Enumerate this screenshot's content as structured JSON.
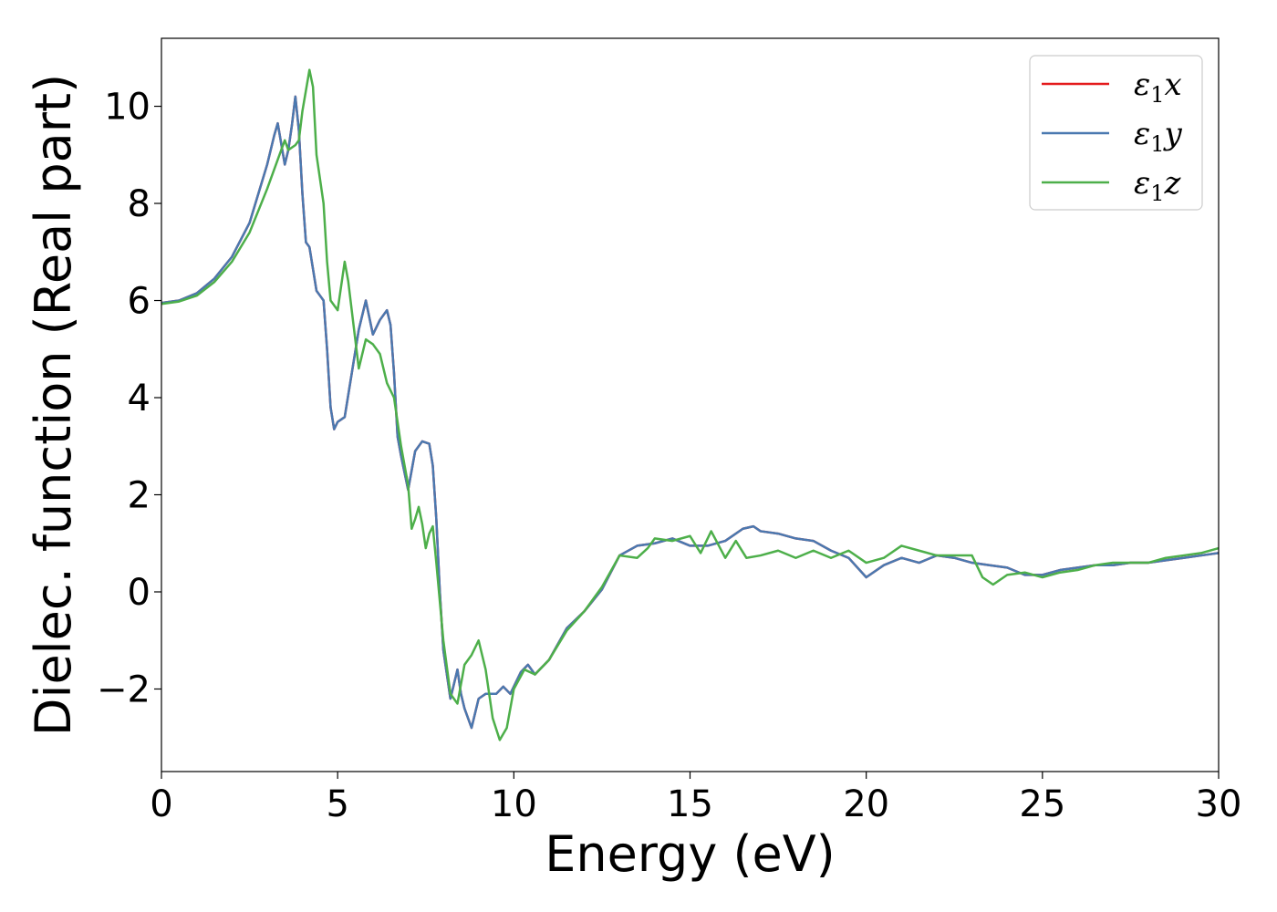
{
  "chart_data": {
    "type": "line",
    "title": "",
    "xlabel": "Energy (eV)",
    "ylabel": "Dielec. function (Real part)",
    "xlim": [
      0,
      30
    ],
    "ylim": [
      -3.7,
      11.4
    ],
    "xticks": [
      0,
      5,
      10,
      15,
      20,
      25,
      30
    ],
    "yticks": [
      -2,
      0,
      2,
      4,
      6,
      8,
      10
    ],
    "ytick_labels": [
      "−2",
      "0",
      "2",
      "4",
      "6",
      "8",
      "10"
    ],
    "grid": false,
    "legend_position": "top-right",
    "series": [
      {
        "name": "ε1x",
        "legend_base": "ε",
        "legend_sub": "1",
        "legend_var": "x",
        "color": "#e41a1c",
        "x": [
          0,
          0.5,
          1,
          1.5,
          2,
          2.5,
          3,
          3.2,
          3.3,
          3.5,
          3.6,
          3.7,
          3.8,
          3.9,
          4.0,
          4.1,
          4.2,
          4.4,
          4.5,
          4.6,
          4.7,
          4.8,
          4.9,
          5.0,
          5.2,
          5.4,
          5.6,
          5.8,
          6.0,
          6.2,
          6.4,
          6.5,
          6.6,
          6.7,
          6.8,
          7.0,
          7.2,
          7.4,
          7.6,
          7.7,
          7.8,
          7.9,
          8.0,
          8.2,
          8.4,
          8.5,
          8.6,
          8.8,
          9.0,
          9.2,
          9.5,
          9.7,
          9.9,
          10.2,
          10.4,
          10.6,
          11.0,
          11.5,
          12.0,
          12.5,
          13.0,
          13.5,
          14.0,
          14.5,
          15.0,
          15.5,
          16.0,
          16.5,
          16.8,
          17.0,
          17.5,
          18.0,
          18.5,
          19.0,
          19.5,
          20.0,
          20.5,
          21.0,
          21.5,
          22.0,
          22.5,
          23.0,
          23.5,
          24.0,
          24.5,
          25.0,
          25.5,
          26.0,
          26.5,
          27.0,
          27.5,
          28.0,
          28.5,
          29.0,
          29.5,
          30.0
        ],
        "y": [
          5.95,
          6.0,
          6.15,
          6.45,
          6.9,
          7.6,
          8.8,
          9.4,
          9.65,
          8.8,
          9.1,
          9.6,
          10.2,
          9.5,
          8.2,
          7.2,
          7.1,
          6.2,
          6.1,
          6.0,
          5.0,
          3.8,
          3.35,
          3.5,
          3.6,
          4.5,
          5.4,
          6.0,
          5.3,
          5.6,
          5.8,
          5.5,
          4.5,
          3.2,
          2.8,
          2.1,
          2.9,
          3.1,
          3.05,
          2.6,
          1.5,
          0.0,
          -1.2,
          -2.2,
          -1.6,
          -2.1,
          -2.4,
          -2.8,
          -2.2,
          -2.1,
          -2.1,
          -1.95,
          -2.1,
          -1.65,
          -1.5,
          -1.7,
          -1.4,
          -0.75,
          -0.4,
          0.05,
          0.75,
          0.95,
          1.0,
          1.1,
          0.95,
          0.95,
          1.05,
          1.3,
          1.35,
          1.25,
          1.2,
          1.1,
          1.05,
          0.85,
          0.7,
          0.3,
          0.55,
          0.7,
          0.6,
          0.75,
          0.7,
          0.6,
          0.55,
          0.5,
          0.35,
          0.35,
          0.45,
          0.5,
          0.55,
          0.55,
          0.6,
          0.6,
          0.65,
          0.7,
          0.75,
          0.8
        ]
      },
      {
        "name": "ε1y",
        "legend_base": "ε",
        "legend_sub": "1",
        "legend_var": "y",
        "color": "#4a79b0",
        "x": [
          0,
          0.5,
          1,
          1.5,
          2,
          2.5,
          3,
          3.2,
          3.3,
          3.5,
          3.6,
          3.7,
          3.8,
          3.9,
          4.0,
          4.1,
          4.2,
          4.4,
          4.5,
          4.6,
          4.7,
          4.8,
          4.9,
          5.0,
          5.2,
          5.4,
          5.6,
          5.8,
          6.0,
          6.2,
          6.4,
          6.5,
          6.6,
          6.7,
          6.8,
          7.0,
          7.2,
          7.4,
          7.6,
          7.7,
          7.8,
          7.9,
          8.0,
          8.2,
          8.4,
          8.5,
          8.6,
          8.8,
          9.0,
          9.2,
          9.5,
          9.7,
          9.9,
          10.2,
          10.4,
          10.6,
          11.0,
          11.5,
          12.0,
          12.5,
          13.0,
          13.5,
          14.0,
          14.5,
          15.0,
          15.5,
          16.0,
          16.5,
          16.8,
          17.0,
          17.5,
          18.0,
          18.5,
          19.0,
          19.5,
          20.0,
          20.5,
          21.0,
          21.5,
          22.0,
          22.5,
          23.0,
          23.5,
          24.0,
          24.5,
          25.0,
          25.5,
          26.0,
          26.5,
          27.0,
          27.5,
          28.0,
          28.5,
          29.0,
          29.5,
          30.0
        ],
        "y": [
          5.95,
          6.0,
          6.15,
          6.45,
          6.9,
          7.6,
          8.8,
          9.4,
          9.65,
          8.8,
          9.1,
          9.6,
          10.2,
          9.5,
          8.2,
          7.2,
          7.1,
          6.2,
          6.1,
          6.0,
          5.0,
          3.8,
          3.35,
          3.5,
          3.6,
          4.5,
          5.4,
          6.0,
          5.3,
          5.6,
          5.8,
          5.5,
          4.5,
          3.2,
          2.8,
          2.1,
          2.9,
          3.1,
          3.05,
          2.6,
          1.5,
          0.0,
          -1.2,
          -2.2,
          -1.6,
          -2.1,
          -2.4,
          -2.8,
          -2.2,
          -2.1,
          -2.1,
          -1.95,
          -2.1,
          -1.65,
          -1.5,
          -1.7,
          -1.4,
          -0.75,
          -0.4,
          0.05,
          0.75,
          0.95,
          1.0,
          1.1,
          0.95,
          0.95,
          1.05,
          1.3,
          1.35,
          1.25,
          1.2,
          1.1,
          1.05,
          0.85,
          0.7,
          0.3,
          0.55,
          0.7,
          0.6,
          0.75,
          0.7,
          0.6,
          0.55,
          0.5,
          0.35,
          0.35,
          0.45,
          0.5,
          0.55,
          0.55,
          0.6,
          0.6,
          0.65,
          0.7,
          0.75,
          0.8
        ]
      },
      {
        "name": "ε1z",
        "legend_base": "ε",
        "legend_sub": "1",
        "legend_var": "z",
        "color": "#4daf4a",
        "x": [
          0,
          0.5,
          1,
          1.5,
          2,
          2.5,
          3,
          3.3,
          3.5,
          3.6,
          3.8,
          3.9,
          4.0,
          4.2,
          4.3,
          4.4,
          4.6,
          4.7,
          4.8,
          5.0,
          5.2,
          5.3,
          5.5,
          5.6,
          5.8,
          6.0,
          6.2,
          6.4,
          6.6,
          6.8,
          7.0,
          7.1,
          7.2,
          7.3,
          7.4,
          7.5,
          7.6,
          7.7,
          7.8,
          8.0,
          8.2,
          8.4,
          8.6,
          8.8,
          9.0,
          9.2,
          9.4,
          9.6,
          9.8,
          10.0,
          10.3,
          10.6,
          11.0,
          11.5,
          12.0,
          12.5,
          13.0,
          13.5,
          13.8,
          14.0,
          14.5,
          15.0,
          15.3,
          15.6,
          16.0,
          16.3,
          16.6,
          17.0,
          17.5,
          18.0,
          18.5,
          19.0,
          19.5,
          20.0,
          20.5,
          21.0,
          21.5,
          22.0,
          22.5,
          23.0,
          23.3,
          23.6,
          24.0,
          24.5,
          25.0,
          25.5,
          26.0,
          26.5,
          27.0,
          27.5,
          28.0,
          28.5,
          29.0,
          29.5,
          30.0
        ],
        "y": [
          5.93,
          5.98,
          6.1,
          6.38,
          6.8,
          7.4,
          8.3,
          8.9,
          9.3,
          9.1,
          9.2,
          9.3,
          9.9,
          10.75,
          10.4,
          9.0,
          8.0,
          6.8,
          6.0,
          5.8,
          6.8,
          6.4,
          5.2,
          4.6,
          5.2,
          5.1,
          4.9,
          4.3,
          4.0,
          3.0,
          2.2,
          1.3,
          1.5,
          1.75,
          1.4,
          0.9,
          1.2,
          1.35,
          0.6,
          -1.0,
          -2.1,
          -2.3,
          -1.5,
          -1.3,
          -1.0,
          -1.6,
          -2.6,
          -3.05,
          -2.8,
          -2.0,
          -1.6,
          -1.7,
          -1.4,
          -0.8,
          -0.4,
          0.1,
          0.75,
          0.7,
          0.9,
          1.1,
          1.05,
          1.15,
          0.8,
          1.25,
          0.7,
          1.05,
          0.7,
          0.75,
          0.85,
          0.7,
          0.85,
          0.7,
          0.85,
          0.6,
          0.7,
          0.95,
          0.85,
          0.75,
          0.75,
          0.75,
          0.3,
          0.15,
          0.35,
          0.4,
          0.3,
          0.4,
          0.45,
          0.55,
          0.6,
          0.6,
          0.6,
          0.7,
          0.75,
          0.8,
          0.9
        ]
      }
    ]
  }
}
